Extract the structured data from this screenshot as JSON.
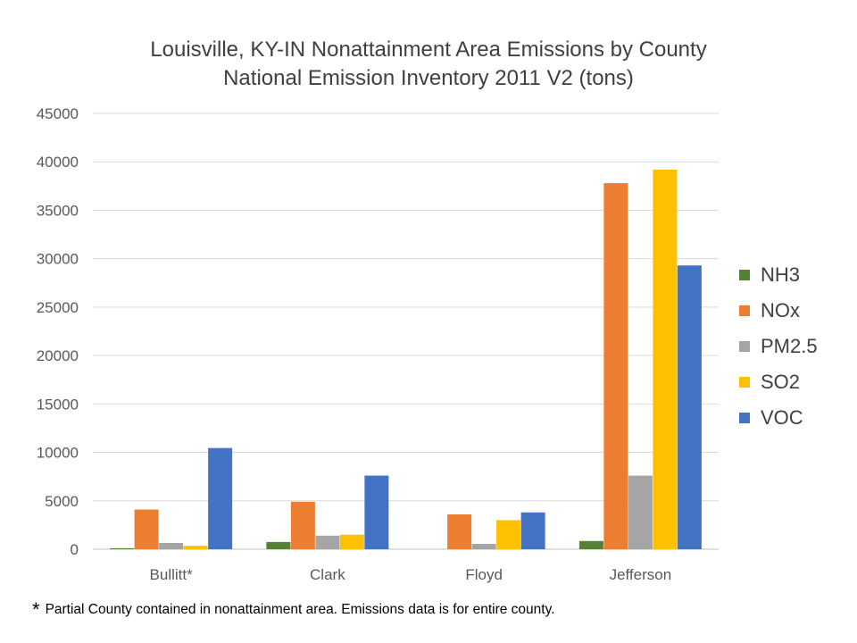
{
  "chart_data": {
    "type": "bar",
    "title": "Louisville, KY-IN Nonattainment Area Emissions by County",
    "subtitle": "National Emission Inventory 2011 V2 (tons)",
    "categories": [
      "Bullitt*",
      "Clark",
      "Floyd",
      "Jefferson"
    ],
    "series": [
      {
        "name": "NH3",
        "color": "#548235",
        "values": [
          100,
          750,
          0,
          850
        ]
      },
      {
        "name": "NOx",
        "color": "#ED7D31",
        "values": [
          4100,
          4900,
          3600,
          37800
        ]
      },
      {
        "name": "PM2.5",
        "color": "#A5A5A5",
        "values": [
          650,
          1400,
          550,
          7600
        ]
      },
      {
        "name": "SO2",
        "color": "#FFC000",
        "values": [
          350,
          1500,
          3000,
          39200
        ]
      },
      {
        "name": "VOC",
        "color": "#4472C4",
        "values": [
          10450,
          7600,
          3800,
          29300
        ]
      }
    ],
    "ylim": [
      0,
      45000
    ],
    "yticks": [
      "0",
      "5000",
      "10000",
      "15000",
      "20000",
      "25000",
      "30000",
      "35000",
      "40000",
      "45000"
    ],
    "grid": true,
    "legend_position": "right"
  },
  "footnote": {
    "marker": "*",
    "text": "Partial County contained in nonattainment area.  Emissions data is for entire county."
  }
}
